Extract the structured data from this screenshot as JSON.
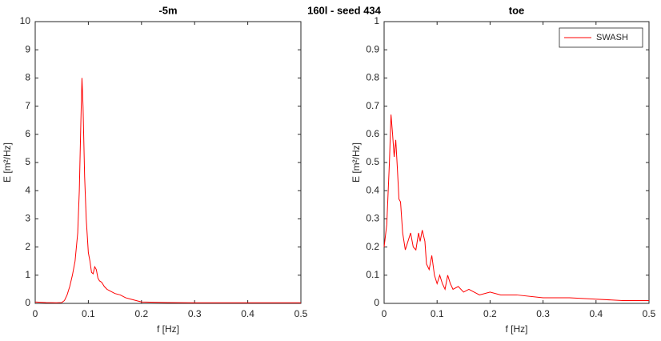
{
  "title": "160l - seed 434",
  "chart_data": [
    {
      "type": "line",
      "title": "-5m",
      "xlabel": "f [Hz]",
      "ylabel": "E [m²/Hz]",
      "xlim": [
        0,
        0.5
      ],
      "xticks": [
        0,
        0.1,
        0.2,
        0.3,
        0.4,
        0.5
      ],
      "ylim": [
        0,
        10
      ],
      "yticks": [
        0,
        1,
        2,
        3,
        4,
        5,
        6,
        7,
        8,
        9,
        10
      ],
      "x": [
        0,
        0.02,
        0.04,
        0.05,
        0.055,
        0.06,
        0.065,
        0.07,
        0.075,
        0.08,
        0.083,
        0.086,
        0.088,
        0.09,
        0.093,
        0.096,
        0.1,
        0.103,
        0.106,
        0.109,
        0.112,
        0.115,
        0.118,
        0.121,
        0.125,
        0.13,
        0.135,
        0.14,
        0.15,
        0.16,
        0.17,
        0.18,
        0.19,
        0.2,
        0.25,
        0.3,
        0.4,
        0.5
      ],
      "series": [
        {
          "color": "#ff0000",
          "values": [
            0.05,
            0.03,
            0.02,
            0.03,
            0.1,
            0.3,
            0.6,
            1.0,
            1.5,
            2.5,
            4,
            6.5,
            8.0,
            7.0,
            4.5,
            3.0,
            1.8,
            1.5,
            1.1,
            1.05,
            1.3,
            1.2,
            0.9,
            0.8,
            0.75,
            0.6,
            0.5,
            0.45,
            0.35,
            0.3,
            0.2,
            0.15,
            0.1,
            0.05,
            0.03,
            0.02,
            0.02,
            0.02
          ]
        }
      ]
    },
    {
      "type": "line",
      "title": "toe",
      "xlabel": "f [Hz]",
      "ylabel": "E [m²/Hz]",
      "xlim": [
        0,
        0.5
      ],
      "xticks": [
        0,
        0.1,
        0.2,
        0.3,
        0.4,
        0.5
      ],
      "ylim": [
        0,
        1
      ],
      "yticks": [
        0,
        0.1,
        0.2,
        0.3,
        0.4,
        0.5,
        0.6,
        0.7,
        0.8,
        0.9,
        1
      ],
      "legend": "northeast",
      "x": [
        0,
        0.005,
        0.01,
        0.013,
        0.016,
        0.019,
        0.022,
        0.025,
        0.028,
        0.031,
        0.035,
        0.04,
        0.045,
        0.05,
        0.055,
        0.06,
        0.065,
        0.068,
        0.072,
        0.077,
        0.08,
        0.085,
        0.09,
        0.095,
        0.1,
        0.105,
        0.11,
        0.115,
        0.12,
        0.125,
        0.13,
        0.14,
        0.15,
        0.16,
        0.17,
        0.18,
        0.2,
        0.22,
        0.25,
        0.3,
        0.35,
        0.4,
        0.45,
        0.5
      ],
      "series": [
        {
          "name": "SWASH",
          "color": "#ff0000",
          "values": [
            0.2,
            0.28,
            0.5,
            0.67,
            0.6,
            0.52,
            0.58,
            0.48,
            0.37,
            0.36,
            0.25,
            0.19,
            0.22,
            0.25,
            0.2,
            0.19,
            0.25,
            0.22,
            0.26,
            0.22,
            0.14,
            0.12,
            0.17,
            0.1,
            0.07,
            0.1,
            0.07,
            0.05,
            0.1,
            0.07,
            0.05,
            0.06,
            0.04,
            0.05,
            0.04,
            0.03,
            0.04,
            0.03,
            0.03,
            0.02,
            0.02,
            0.015,
            0.01,
            0.01
          ]
        }
      ]
    }
  ]
}
